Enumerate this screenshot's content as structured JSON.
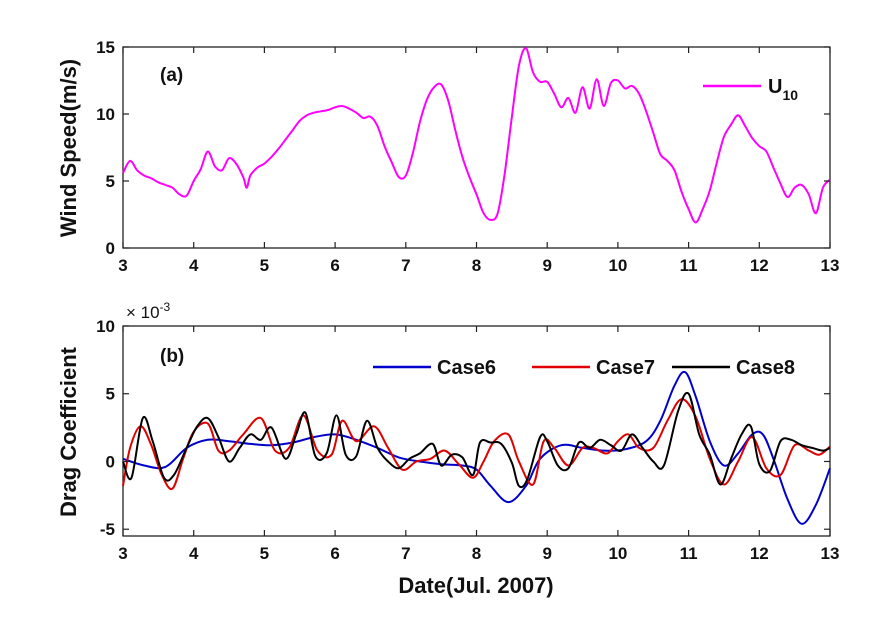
{
  "chart_data": [
    {
      "type": "line",
      "panel_label": "(a)",
      "ylabel": "Wind Speed(m/s)",
      "xlabel": "",
      "xlim": [
        3,
        13
      ],
      "ylim": [
        0,
        15
      ],
      "xticks": [
        "3",
        "4",
        "5",
        "6",
        "7",
        "8",
        "9",
        "10",
        "11",
        "12",
        "13"
      ],
      "yticks": [
        "0",
        "5",
        "10",
        "15"
      ],
      "legend_position": "top-right",
      "series": [
        {
          "name": "U",
          "name_subscript": "10",
          "color": "#ff00ff",
          "x": [
            3.0,
            3.1,
            3.2,
            3.3,
            3.4,
            3.5,
            3.6,
            3.7,
            3.8,
            3.9,
            4.0,
            4.1,
            4.2,
            4.3,
            4.4,
            4.5,
            4.6,
            4.7,
            4.75,
            4.8,
            4.9,
            5.0,
            5.1,
            5.2,
            5.3,
            5.4,
            5.5,
            5.6,
            5.7,
            5.8,
            5.9,
            6.0,
            6.1,
            6.2,
            6.3,
            6.4,
            6.5,
            6.6,
            6.7,
            6.8,
            6.9,
            7.0,
            7.1,
            7.2,
            7.3,
            7.4,
            7.5,
            7.6,
            7.7,
            7.8,
            7.9,
            8.0,
            8.1,
            8.2,
            8.3,
            8.4,
            8.5,
            8.6,
            8.7,
            8.8,
            8.9,
            9.0,
            9.1,
            9.2,
            9.3,
            9.4,
            9.5,
            9.6,
            9.7,
            9.8,
            9.9,
            10.0,
            10.1,
            10.2,
            10.3,
            10.4,
            10.5,
            10.6,
            10.7,
            10.8,
            10.9,
            11.0,
            11.1,
            11.2,
            11.3,
            11.4,
            11.5,
            11.6,
            11.7,
            11.8,
            11.9,
            12.0,
            12.1,
            12.2,
            12.3,
            12.4,
            12.5,
            12.6,
            12.7,
            12.8,
            12.9,
            13.0
          ],
          "y": [
            5.6,
            6.5,
            5.8,
            5.4,
            5.2,
            4.9,
            4.7,
            4.5,
            4.0,
            3.9,
            5.0,
            5.9,
            7.2,
            6.1,
            5.8,
            6.7,
            6.3,
            5.3,
            4.5,
            5.4,
            6.0,
            6.3,
            6.8,
            7.4,
            8.1,
            8.8,
            9.5,
            9.9,
            10.1,
            10.2,
            10.3,
            10.5,
            10.6,
            10.4,
            10.1,
            9.7,
            9.8,
            9.1,
            7.6,
            6.4,
            5.3,
            5.4,
            7.1,
            9.4,
            11.1,
            12.0,
            12.2,
            11.0,
            8.8,
            6.8,
            5.3,
            4.0,
            2.6,
            2.1,
            2.6,
            5.6,
            9.8,
            13.6,
            14.9,
            13.1,
            12.4,
            12.4,
            11.5,
            10.5,
            11.2,
            10.1,
            12.0,
            10.4,
            12.6,
            10.6,
            12.3,
            12.5,
            11.9,
            12.1,
            11.5,
            10.2,
            8.6,
            7.0,
            6.5,
            5.8,
            4.2,
            2.9,
            1.9,
            2.9,
            4.3,
            6.4,
            8.3,
            9.2,
            9.9,
            9.1,
            8.2,
            7.6,
            7.2,
            6.0,
            4.8,
            3.8,
            4.5,
            4.7,
            4.0,
            2.6,
            4.5,
            5.1
          ]
        }
      ]
    },
    {
      "type": "line",
      "panel_label": "(b)",
      "ylabel": "Drag Coefficient",
      "xlabel": "Date(Jul. 2007)",
      "exponent_base": "× 10",
      "exponent": "-3",
      "xlim": [
        3,
        13
      ],
      "ylim": [
        -5.5,
        10
      ],
      "xticks": [
        "3",
        "4",
        "5",
        "6",
        "7",
        "8",
        "9",
        "10",
        "11",
        "12",
        "13"
      ],
      "yticks": [
        "-5",
        "0",
        "5",
        "10"
      ],
      "legend_position": "top-right",
      "series": [
        {
          "name": "Case6",
          "color": "#0000cc",
          "x": [
            3.0,
            3.3,
            3.6,
            3.9,
            4.2,
            4.5,
            4.8,
            5.1,
            5.4,
            5.7,
            6.0,
            6.3,
            6.6,
            6.9,
            7.2,
            7.5,
            7.8,
            8.0,
            8.2,
            8.45,
            8.7,
            8.9,
            9.2,
            9.5,
            9.8,
            10.1,
            10.4,
            10.6,
            10.8,
            10.95,
            11.1,
            11.3,
            11.5,
            11.7,
            11.9,
            12.05,
            12.2,
            12.4,
            12.6,
            12.8,
            13.0
          ],
          "y": [
            0.2,
            -0.3,
            -0.4,
            1.0,
            1.6,
            1.5,
            1.3,
            1.2,
            1.4,
            1.8,
            2.0,
            1.6,
            1.0,
            0.3,
            0.0,
            -0.2,
            -0.3,
            -0.6,
            -1.8,
            -3.0,
            -1.8,
            0.2,
            1.2,
            1.0,
            0.8,
            0.9,
            1.5,
            3.0,
            5.6,
            6.6,
            4.8,
            1.5,
            -0.3,
            0.6,
            2.0,
            2.0,
            0.2,
            -2.8,
            -4.6,
            -3.2,
            -0.5
          ]
        },
        {
          "name": "Case7",
          "color": "#e00000",
          "x": [
            3.0,
            3.1,
            3.25,
            3.4,
            3.55,
            3.7,
            3.85,
            4.0,
            4.2,
            4.35,
            4.5,
            4.7,
            4.95,
            5.15,
            5.35,
            5.55,
            5.75,
            5.95,
            6.1,
            6.3,
            6.55,
            6.75,
            6.95,
            7.15,
            7.35,
            7.55,
            7.75,
            7.95,
            8.1,
            8.25,
            8.45,
            8.6,
            8.8,
            8.95,
            9.1,
            9.3,
            9.5,
            9.65,
            9.85,
            10.0,
            10.15,
            10.3,
            10.5,
            10.7,
            10.9,
            11.1,
            11.3,
            11.5,
            11.7,
            11.9,
            12.1,
            12.3,
            12.5,
            12.7,
            12.85,
            13.0
          ],
          "y": [
            -1.8,
            1.0,
            2.6,
            1.2,
            -1.0,
            -2.0,
            0.2,
            2.2,
            2.8,
            0.8,
            0.8,
            2.0,
            3.2,
            0.8,
            1.0,
            3.4,
            0.8,
            0.5,
            3.0,
            1.5,
            2.6,
            1.0,
            -0.6,
            0.0,
            0.2,
            0.8,
            -0.2,
            -1.2,
            0.0,
            1.5,
            2.0,
            0.0,
            -1.7,
            1.5,
            1.0,
            -0.3,
            1.0,
            1.0,
            0.6,
            1.5,
            2.0,
            1.0,
            1.0,
            3.0,
            4.6,
            3.3,
            0.2,
            -1.7,
            0.0,
            1.8,
            -0.5,
            -1.0,
            1.2,
            0.8,
            0.5,
            1.1
          ]
        },
        {
          "name": "Case8",
          "color": "#000000",
          "x": [
            3.0,
            3.12,
            3.28,
            3.42,
            3.58,
            3.72,
            3.9,
            4.05,
            4.2,
            4.35,
            4.5,
            4.65,
            4.8,
            4.95,
            5.1,
            5.3,
            5.45,
            5.58,
            5.72,
            5.88,
            6.02,
            6.15,
            6.3,
            6.45,
            6.6,
            6.75,
            6.9,
            7.05,
            7.2,
            7.38,
            7.5,
            7.65,
            7.8,
            7.95,
            8.05,
            8.2,
            8.35,
            8.5,
            8.6,
            8.72,
            8.9,
            9.0,
            9.15,
            9.3,
            9.45,
            9.6,
            9.75,
            9.9,
            10.05,
            10.2,
            10.35,
            10.5,
            10.65,
            10.85,
            11.0,
            11.15,
            11.3,
            11.45,
            11.6,
            11.75,
            11.88,
            12.0,
            12.15,
            12.3,
            12.45,
            12.6,
            12.75,
            12.9,
            13.0
          ],
          "y": [
            0.0,
            -1.2,
            3.2,
            1.5,
            -1.2,
            -1.0,
            1.0,
            2.6,
            3.2,
            1.8,
            0.0,
            1.0,
            2.0,
            1.6,
            2.5,
            0.2,
            2.0,
            3.6,
            0.4,
            0.6,
            3.4,
            0.5,
            0.4,
            3.0,
            1.0,
            0.0,
            -0.5,
            0.2,
            0.6,
            1.3,
            -0.3,
            0.5,
            0.3,
            -1.0,
            1.4,
            1.4,
            1.3,
            -0.1,
            -1.8,
            -1.3,
            1.8,
            1.5,
            -0.3,
            -0.5,
            1.4,
            1.0,
            1.6,
            1.2,
            0.8,
            2.0,
            1.0,
            0.0,
            -0.3,
            3.7,
            5.0,
            2.0,
            0.5,
            -1.7,
            0.2,
            2.0,
            2.6,
            -0.2,
            -0.7,
            1.5,
            1.6,
            1.2,
            1.0,
            0.8,
            1.0
          ]
        }
      ]
    }
  ]
}
